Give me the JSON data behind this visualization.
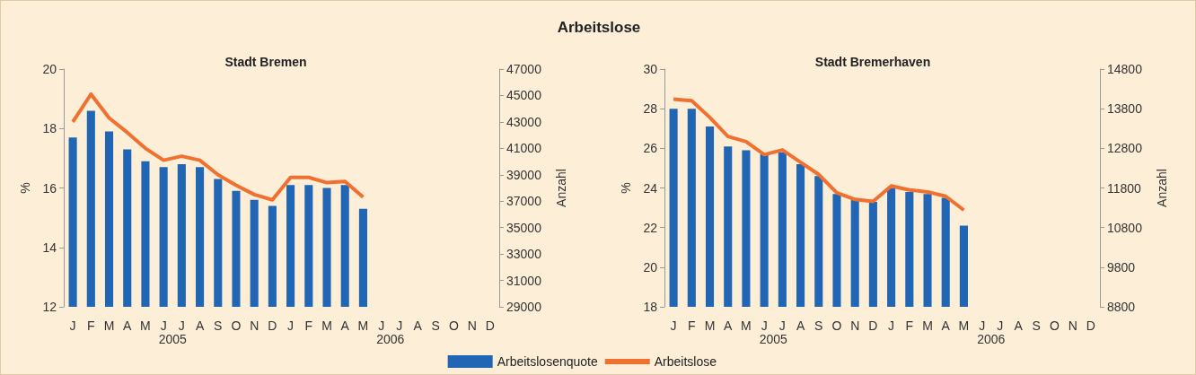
{
  "chart_data": [
    {
      "type": "other",
      "title": "Arbeitslose"
    },
    {
      "type": "bar",
      "subtitle": "Stadt Bremen",
      "ylabel": "%",
      "y2label": "Anzahl",
      "categories": [
        "J",
        "F",
        "M",
        "A",
        "M",
        "J",
        "J",
        "A",
        "S",
        "O",
        "N",
        "D",
        "J",
        "F",
        "M",
        "A",
        "M",
        "J",
        "J",
        "A",
        "S",
        "O",
        "N",
        "D"
      ],
      "series": [
        {
          "name": "Arbeitslosenquote",
          "color": "#2166b4",
          "values": [
            17.7,
            18.6,
            17.9,
            17.3,
            16.9,
            16.7,
            16.8,
            16.7,
            16.3,
            15.9,
            15.6,
            15.4,
            16.1,
            16.1,
            16.0,
            16.1,
            15.3,
            null,
            null,
            null,
            null,
            null,
            null,
            null
          ]
        },
        {
          "name": "Arbeitslose",
          "type": "line",
          "axis": "y2",
          "color": "#f07030",
          "values": [
            43000,
            45100,
            43300,
            42200,
            41000,
            40100,
            40400,
            40100,
            39000,
            38200,
            37500,
            37100,
            38800,
            38800,
            38400,
            38500,
            37300,
            null,
            null,
            null,
            null,
            null,
            null,
            null
          ]
        }
      ],
      "ylim": [
        12,
        20
      ],
      "yticks": [
        12,
        14,
        16,
        18,
        20
      ],
      "y2lim": [
        29000,
        47000
      ],
      "y2ticks": [
        29000,
        31000,
        33000,
        35000,
        37000,
        39000,
        41000,
        43000,
        45000,
        47000
      ],
      "annotations": [
        "2005",
        "2006"
      ],
      "legend": "bottom",
      "marker": "none",
      "grid": false
    },
    {
      "type": "bar",
      "subtitle": "Stadt Bremerhaven",
      "ylabel": "%",
      "y2label": "Anzahl",
      "categories": [
        "J",
        "F",
        "M",
        "A",
        "M",
        "J",
        "J",
        "A",
        "S",
        "O",
        "N",
        "D",
        "J",
        "F",
        "M",
        "A",
        "M",
        "J",
        "J",
        "A",
        "S",
        "O",
        "N",
        "D"
      ],
      "series": [
        {
          "color": "#2166b4",
          "values": [
            28.0,
            28.0,
            27.1,
            26.1,
            25.9,
            25.7,
            25.8,
            25.2,
            24.6,
            23.7,
            23.4,
            23.3,
            24.0,
            23.8,
            23.7,
            23.5,
            22.1,
            null,
            null,
            null,
            null,
            null,
            null,
            null
          ]
        },
        {
          "type": "line",
          "axis": "y2",
          "color": "#f07030",
          "values": [
            14040,
            14000,
            13580,
            13100,
            12970,
            12640,
            12760,
            12450,
            12140,
            11680,
            11510,
            11460,
            11850,
            11750,
            11700,
            11590,
            11240,
            null,
            null,
            null,
            null,
            null,
            null,
            null
          ]
        }
      ],
      "ylim": [
        18,
        30
      ],
      "yticks": [
        18,
        20,
        22,
        24,
        26,
        28,
        30
      ],
      "y2lim": [
        8800,
        14800
      ],
      "y2ticks": [
        8800,
        9800,
        10800,
        11800,
        12800,
        13800,
        14800
      ],
      "annotations": [
        "2005",
        "2006"
      ],
      "marker": "none",
      "grid": false
    }
  ]
}
